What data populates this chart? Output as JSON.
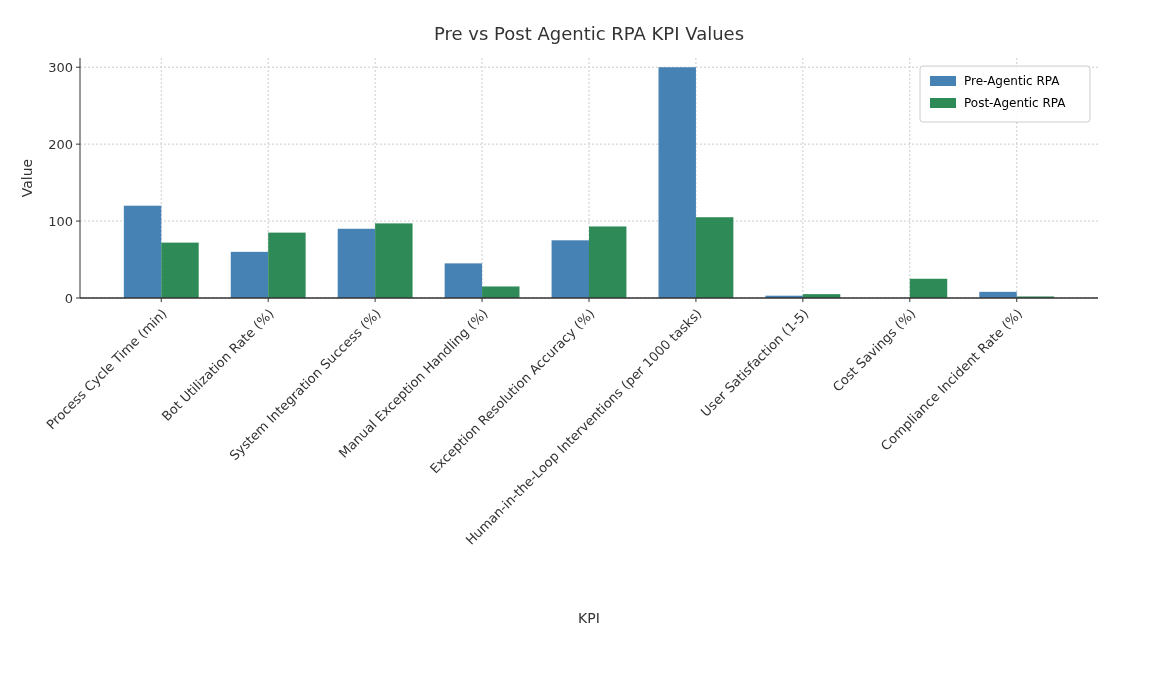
{
  "chart_data": {
    "type": "bar",
    "title": "Pre vs Post Agentic RPA KPI Values",
    "xlabel": "KPI",
    "ylabel": "Value",
    "categories": [
      "Process Cycle Time (min)",
      "Bot Utilization Rate (%)",
      "System Integration Success (%)",
      "Manual Exception Handling (%)",
      "Exception Resolution Accuracy (%)",
      "Human-in-the-Loop Interventions (per 1000 tasks)",
      "User Satisfaction (1-5)",
      "Cost Savings (%)",
      "Compliance Incident Rate (%)"
    ],
    "series": [
      {
        "name": "Pre-Agentic RPA",
        "color": "#4682b4",
        "values": [
          120,
          60,
          90,
          45,
          75,
          300,
          3,
          0,
          8
        ]
      },
      {
        "name": "Post-Agentic RPA",
        "color": "#2e8b57",
        "values": [
          72,
          85,
          97,
          15,
          93,
          105,
          5,
          25,
          2
        ]
      }
    ],
    "ylim": [
      0,
      312
    ],
    "yticks": [
      0,
      100,
      200,
      300
    ],
    "grid": true,
    "legend": "top right"
  }
}
